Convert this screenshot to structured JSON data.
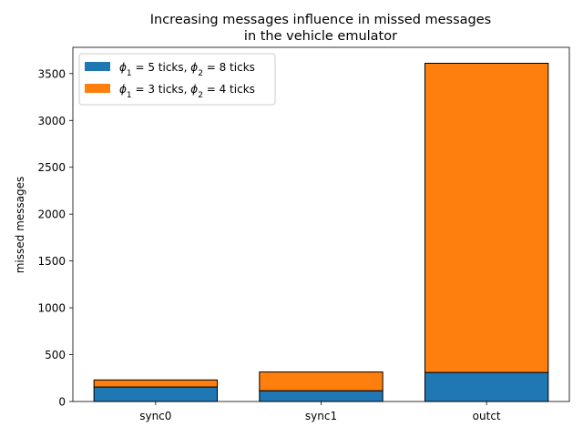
{
  "chart_data": {
    "type": "bar",
    "stacked": true,
    "title": [
      "Increasing messages influence in missed messages",
      "in the vehicle emulator"
    ],
    "xlabel": "",
    "ylabel": "missed messages",
    "categories": [
      "sync0",
      "sync1",
      "outct"
    ],
    "ylim": [
      0,
      3780
    ],
    "yticks": [
      0,
      500,
      1000,
      1500,
      2000,
      2500,
      3000,
      3500
    ],
    "legend_position": "top-left",
    "grid": false,
    "series": [
      {
        "name_parts": [
          {
            "t": "ϕ",
            "i": true
          },
          {
            "t": "1",
            "sub": true
          },
          {
            "t": " = 5 ticks, "
          },
          {
            "t": "ϕ",
            "i": true
          },
          {
            "t": "2",
            "sub": true
          },
          {
            "t": " = 8 ticks"
          }
        ],
        "color": "#1f77b4",
        "values": [
          155,
          115,
          310
        ]
      },
      {
        "name_parts": [
          {
            "t": "ϕ",
            "i": true
          },
          {
            "t": "1",
            "sub": true
          },
          {
            "t": " = 3 ticks, "
          },
          {
            "t": "ϕ",
            "i": true
          },
          {
            "t": "2",
            "sub": true
          },
          {
            "t": " = 4 ticks"
          }
        ],
        "color": "#ff7f0e",
        "values": [
          75,
          200,
          3300
        ]
      }
    ]
  }
}
